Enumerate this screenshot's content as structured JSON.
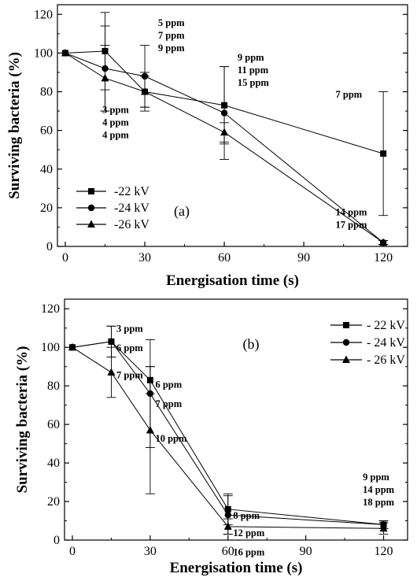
{
  "chart_data": [
    {
      "type": "line",
      "panel_label": "(a)",
      "xlabel": "Energisation time (s)",
      "ylabel": "Surviving bacteria (%)",
      "xlim": [
        0,
        125
      ],
      "ylim": [
        0,
        125
      ],
      "xticks": [
        0,
        30,
        60,
        90,
        120
      ],
      "yticks": [
        0,
        20,
        40,
        60,
        80,
        100,
        120
      ],
      "legend_position": "bottom-left",
      "series": [
        {
          "name": "-22 kV",
          "marker": "square",
          "x": [
            0,
            15,
            30,
            60,
            120
          ],
          "y": [
            100,
            101,
            80,
            73,
            48
          ],
          "err": [
            0,
            20,
            10,
            20,
            32
          ]
        },
        {
          "name": "-24 kV",
          "marker": "circle",
          "x": [
            0,
            15,
            30,
            60,
            120
          ],
          "y": [
            100,
            92,
            88,
            69,
            2
          ],
          "err": [
            0,
            22,
            16,
            24,
            1
          ]
        },
        {
          "name": "-26 kV",
          "marker": "triangle",
          "x": [
            0,
            15,
            30,
            60,
            120
          ],
          "y": [
            100,
            87,
            80,
            59,
            2
          ],
          "err": [
            0,
            17,
            8,
            5,
            1
          ]
        }
      ],
      "annotations": [
        {
          "x": 14,
          "y": 69,
          "lines": [
            "3 ppm",
            "4 ppm",
            "4 ppm"
          ]
        },
        {
          "x": 35,
          "y": 114,
          "lines": [
            "5 ppm",
            "7 ppm",
            "9 ppm"
          ]
        },
        {
          "x": 65,
          "y": 96,
          "lines": [
            "9 ppm",
            "11 ppm",
            "15 ppm"
          ]
        },
        {
          "x": 102,
          "y": 77,
          "lines": [
            "7 ppm"
          ]
        },
        {
          "x": 102,
          "y": 16,
          "lines": [
            "14 ppm",
            "17 ppm"
          ]
        }
      ]
    },
    {
      "type": "line",
      "panel_label": "(b)",
      "xlabel": "Energisation time (s)",
      "ylabel": "Surviving bacteria (%)",
      "xlim": [
        0,
        125
      ],
      "ylim": [
        0,
        125
      ],
      "xticks": [
        0,
        30,
        60,
        90,
        120
      ],
      "yticks": [
        0,
        20,
        40,
        60,
        80,
        100,
        120
      ],
      "legend_position": "top-right",
      "series": [
        {
          "name": "- 22 kV",
          "marker": "square",
          "x": [
            0,
            15,
            30,
            60,
            120
          ],
          "y": [
            100,
            103,
            83,
            16,
            8
          ],
          "err": [
            0,
            8,
            7,
            8,
            2
          ]
        },
        {
          "name": "- 24 kV",
          "marker": "circle",
          "x": [
            0,
            15,
            30,
            60,
            120
          ],
          "y": [
            100,
            103,
            76,
            13,
            8
          ],
          "err": [
            0,
            8,
            28,
            10,
            2
          ]
        },
        {
          "name": "- 26 kV",
          "marker": "triangle",
          "x": [
            0,
            15,
            30,
            60,
            120
          ],
          "y": [
            100,
            87,
            57,
            7,
            6
          ],
          "err": [
            0,
            13,
            33,
            4,
            3
          ]
        }
      ],
      "annotations": [
        {
          "x": 17,
          "y": 108,
          "lines": [
            "3 ppm"
          ]
        },
        {
          "x": 17,
          "y": 98,
          "lines": [
            "6 ppm"
          ]
        },
        {
          "x": 17,
          "y": 84,
          "lines": [
            "7 ppm"
          ]
        },
        {
          "x": 32,
          "y": 79,
          "lines": [
            "6 ppm"
          ]
        },
        {
          "x": 32,
          "y": 69,
          "lines": [
            "7 ppm"
          ]
        },
        {
          "x": 32,
          "y": 51,
          "lines": [
            "10 ppm"
          ]
        },
        {
          "x": 62,
          "y": 11,
          "lines": [
            "8 ppm"
          ]
        },
        {
          "x": 62,
          "y": 2,
          "lines": [
            "12 ppm"
          ]
        },
        {
          "x": 62,
          "y": -8,
          "lines": [
            "16 ppm"
          ]
        },
        {
          "x": 112,
          "y": 31,
          "lines": [
            "9 ppm",
            "14 ppm",
            "18 ppm"
          ]
        }
      ]
    }
  ]
}
